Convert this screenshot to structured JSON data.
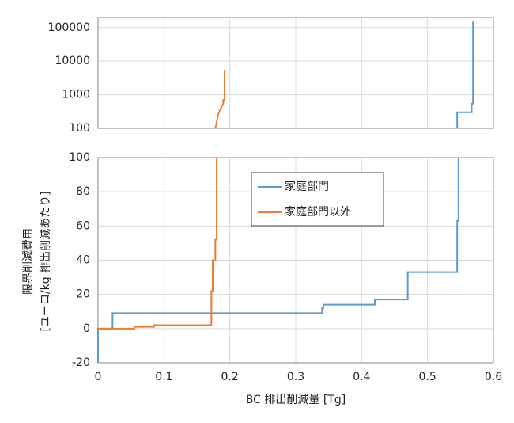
{
  "chart_data": [
    {
      "type": "line",
      "log_y": true,
      "xlim": [
        0,
        0.6
      ],
      "xticks": [
        0,
        0.1,
        0.2,
        0.3,
        0.4,
        0.5,
        0.6
      ],
      "ylim": [
        100,
        200000
      ],
      "yticks": [
        100,
        1000,
        10000,
        100000
      ],
      "grid": true,
      "series": [
        {
          "color": "#5b9bd5",
          "x": [
            0.545,
            0.545,
            0.567,
            0.567,
            0.569,
            0.569
          ],
          "values": [
            100,
            300,
            300,
            550,
            550,
            150000
          ]
        },
        {
          "color": "#ed7d31",
          "x": [
            0.178,
            0.18,
            0.182,
            0.185,
            0.188,
            0.19,
            0.19,
            0.192,
            0.192
          ],
          "values": [
            100,
            150,
            250,
            350,
            450,
            550,
            700,
            700,
            5500
          ]
        }
      ]
    },
    {
      "type": "line",
      "xlim": [
        0,
        0.6
      ],
      "xticks": [
        0,
        0.1,
        0.2,
        0.3,
        0.4,
        0.5,
        0.6
      ],
      "ylim": [
        -20,
        100
      ],
      "yticks": [
        -20,
        0,
        20,
        40,
        60,
        80,
        100
      ],
      "grid": true,
      "xlabel": "BC 排出削減量 [Tg]",
      "ylabel": [
        "限界削減費用",
        "[ユーロ/kg 排出削減あたり]"
      ],
      "series": [
        {
          "name": "家庭部門",
          "color": "#5b9bd5",
          "x": [
            0,
            0,
            0.022,
            0.022,
            0.34,
            0.34,
            0.342,
            0.342,
            0.42,
            0.42,
            0.47,
            0.47,
            0.545,
            0.545,
            0.547,
            0.547
          ],
          "values": [
            -20,
            0,
            0,
            9,
            9,
            12,
            12,
            14,
            14,
            17,
            17,
            33,
            33,
            63,
            63,
            100
          ]
        },
        {
          "name": "家庭部門以外",
          "color": "#ed7d31",
          "x": [
            0,
            0.055,
            0.055,
            0.085,
            0.085,
            0.172,
            0.172,
            0.174,
            0.174,
            0.178,
            0.178,
            0.18,
            0.18
          ],
          "values": [
            0,
            0,
            1,
            1,
            2,
            2,
            22,
            22,
            40,
            40,
            52,
            52,
            100
          ]
        }
      ]
    }
  ]
}
